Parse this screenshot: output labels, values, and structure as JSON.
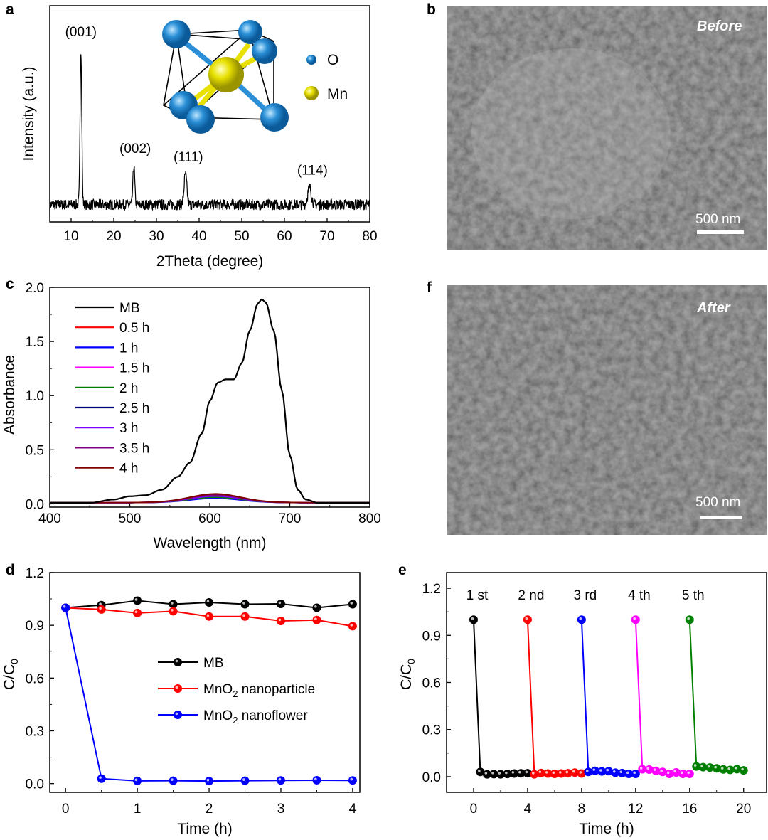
{
  "panels": {
    "a": "a",
    "b": "b",
    "c": "c",
    "d": "d",
    "e": "e",
    "f": "f"
  },
  "sem": {
    "before_label": "Before",
    "after_label": "After",
    "scale_label": "500 nm"
  },
  "inset": {
    "legend": [
      "O",
      "Mn"
    ],
    "colors": {
      "O": "#2a8fd6",
      "Mn": "#e8e000"
    }
  },
  "chart_data": [
    {
      "id": "a",
      "type": "line",
      "xlabel": "2Theta (degree)",
      "ylabel": "Intensity (a.u.)",
      "xlim": [
        5,
        80
      ],
      "xticks": [
        10,
        20,
        30,
        40,
        50,
        60,
        70,
        80
      ],
      "baseline": 0.08,
      "noise": 0.025,
      "peaks": [
        {
          "x": 12.3,
          "height": 0.72,
          "width": 0.28,
          "label": "(001)"
        },
        {
          "x": 24.7,
          "height": 0.18,
          "width": 0.3,
          "label": "(002)"
        },
        {
          "x": 36.8,
          "height": 0.14,
          "width": 0.45,
          "label": "(111)"
        },
        {
          "x": 65.9,
          "height": 0.08,
          "width": 0.6,
          "label": "(114)"
        }
      ]
    },
    {
      "id": "c",
      "type": "line",
      "xlabel": "Wavelength (nm)",
      "ylabel": "Absorbance",
      "xlim": [
        400,
        800
      ],
      "ylim": [
        -0.03,
        2.0
      ],
      "xticks": [
        400,
        500,
        600,
        700,
        800
      ],
      "yticks": [
        0.0,
        0.5,
        1.0,
        1.5,
        2.0
      ],
      "legend_position": "top-left",
      "series": [
        {
          "name": "MB",
          "color": "#000000",
          "x": [
            400,
            450,
            480,
            500,
            520,
            540,
            560,
            575,
            590,
            600,
            610,
            620,
            630,
            640,
            650,
            660,
            665,
            670,
            680,
            690,
            700,
            710,
            720,
            735,
            760,
            800
          ],
          "y": [
            0.01,
            0.01,
            0.04,
            0.07,
            0.08,
            0.13,
            0.25,
            0.38,
            0.65,
            0.95,
            1.12,
            1.15,
            1.15,
            1.3,
            1.6,
            1.85,
            1.89,
            1.86,
            1.6,
            1.05,
            0.45,
            0.13,
            0.04,
            0.01,
            0.01,
            0.01
          ]
        },
        {
          "name": "0.5 h",
          "color": "#ff0000",
          "peak": 0.07
        },
        {
          "name": "1 h",
          "color": "#0000ff",
          "peak": 0.04
        },
        {
          "name": "1.5 h",
          "color": "#ff00ff",
          "peak": 0.05
        },
        {
          "name": "2 h",
          "color": "#008000",
          "peak": 0.05
        },
        {
          "name": "2.5 h",
          "color": "#000080",
          "peak": 0.06
        },
        {
          "name": "3 h",
          "color": "#8000ff",
          "peak": 0.06
        },
        {
          "name": "3.5 h",
          "color": "#800080",
          "peak": 0.07
        },
        {
          "name": "4 h",
          "color": "#800000",
          "peak": 0.08
        }
      ]
    },
    {
      "id": "d",
      "type": "line",
      "xlabel": "Time (h)",
      "ylabel": "C/C0",
      "xlim": [
        -0.22,
        4.1
      ],
      "ylim": [
        -0.05,
        1.2
      ],
      "xticks": [
        0,
        1,
        2,
        3,
        4
      ],
      "yticks": [
        0.0,
        0.3,
        0.6,
        0.9,
        1.2
      ],
      "legend_position": "center-right",
      "x": [
        0,
        0.5,
        1,
        1.5,
        2,
        2.5,
        3,
        3.5,
        4
      ],
      "series": [
        {
          "name": "MB",
          "color": "#000000",
          "values": [
            1.0,
            1.015,
            1.04,
            1.02,
            1.03,
            1.02,
            1.022,
            1.0,
            1.02
          ]
        },
        {
          "name": "MnO2 nanoparticle",
          "color": "#ff0000",
          "values": [
            1.0,
            0.99,
            0.97,
            0.98,
            0.95,
            0.95,
            0.925,
            0.93,
            0.895
          ]
        },
        {
          "name": "MnO2 nanoflower",
          "color": "#0000ff",
          "values": [
            1.0,
            0.028,
            0.015,
            0.016,
            0.014,
            0.016,
            0.018,
            0.019,
            0.018
          ]
        }
      ],
      "legend": [
        {
          "prefix": "MnO",
          "sub": "2",
          "suffix": " nanoparticle"
        }
      ]
    },
    {
      "id": "e",
      "type": "line",
      "xlabel": "Time (h)",
      "ylabel": "C/C0",
      "xlim": [
        -2,
        21.7
      ],
      "ylim": [
        -0.1,
        1.3
      ],
      "xticks": [
        0,
        4,
        8,
        12,
        16,
        20
      ],
      "yticks": [
        0.0,
        0.3,
        0.6,
        0.9,
        1.2
      ],
      "series": [
        {
          "name": "1 st",
          "color": "#000000",
          "x0": 0,
          "values": [
            1.0,
            0.03,
            0.015,
            0.016,
            0.015,
            0.017,
            0.02,
            0.021,
            0.022
          ]
        },
        {
          "name": "2 nd",
          "color": "#ff0000",
          "x0": 4,
          "values": [
            1.0,
            0.015,
            0.023,
            0.02,
            0.018,
            0.02,
            0.022,
            0.026,
            0.02
          ]
        },
        {
          "name": "3 rd",
          "color": "#0000ff",
          "x0": 8,
          "values": [
            1.0,
            0.03,
            0.037,
            0.033,
            0.035,
            0.025,
            0.023,
            0.018,
            0.018
          ]
        },
        {
          "name": "4 th",
          "color": "#ff00ff",
          "x0": 12,
          "values": [
            1.0,
            0.047,
            0.045,
            0.037,
            0.03,
            0.018,
            0.027,
            0.018,
            0.018
          ]
        },
        {
          "name": "5 th",
          "color": "#008000",
          "x0": 16,
          "values": [
            1.0,
            0.065,
            0.06,
            0.058,
            0.053,
            0.046,
            0.043,
            0.048,
            0.04
          ]
        }
      ]
    }
  ]
}
